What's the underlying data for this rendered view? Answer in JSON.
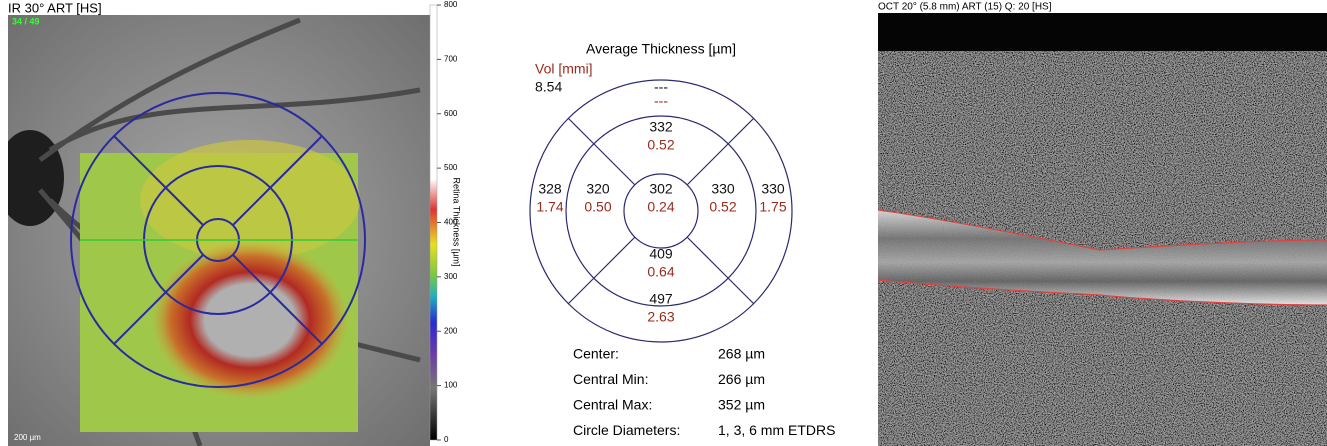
{
  "left_panel": {
    "title": "IR 30° ART [HS]",
    "counter": "34 / 49",
    "scale_bar": "200 µm",
    "colorbar": {
      "label": "Retina Thickness [µm]",
      "ticks": [
        0,
        100,
        200,
        300,
        400,
        500,
        600,
        700,
        800
      ]
    }
  },
  "thickness_map": {
    "title": "Average Thickness [µm]",
    "volume_label": "Vol [mmi]",
    "total_volume": "8.54",
    "sectors": [
      {
        "thickness": "302",
        "volume": "0.24"
      },
      {
        "thickness": "332",
        "volume": "0.52"
      },
      {
        "thickness": "320",
        "volume": "0.50"
      },
      {
        "thickness": "330",
        "volume": "0.52"
      },
      {
        "thickness": "409",
        "volume": "0.64"
      },
      {
        "thickness": "---",
        "volume": "---"
      },
      {
        "thickness": "328",
        "volume": "1.74"
      },
      {
        "thickness": "330",
        "volume": "1.75"
      },
      {
        "thickness": "497",
        "volume": "2.63"
      }
    ],
    "stats": [
      {
        "label": "Center:",
        "value": "268 µm"
      },
      {
        "label": "Central Min:",
        "value": "266 µm"
      },
      {
        "label": "Central Max:",
        "value": "352 µm"
      },
      {
        "label": "Circle Diameters:",
        "value": "1, 3, 6 mm ETDRS"
      }
    ]
  },
  "right_panel": {
    "title": "OCT 20° (5.8 mm) ART (15) Q: 20 [HS]"
  }
}
